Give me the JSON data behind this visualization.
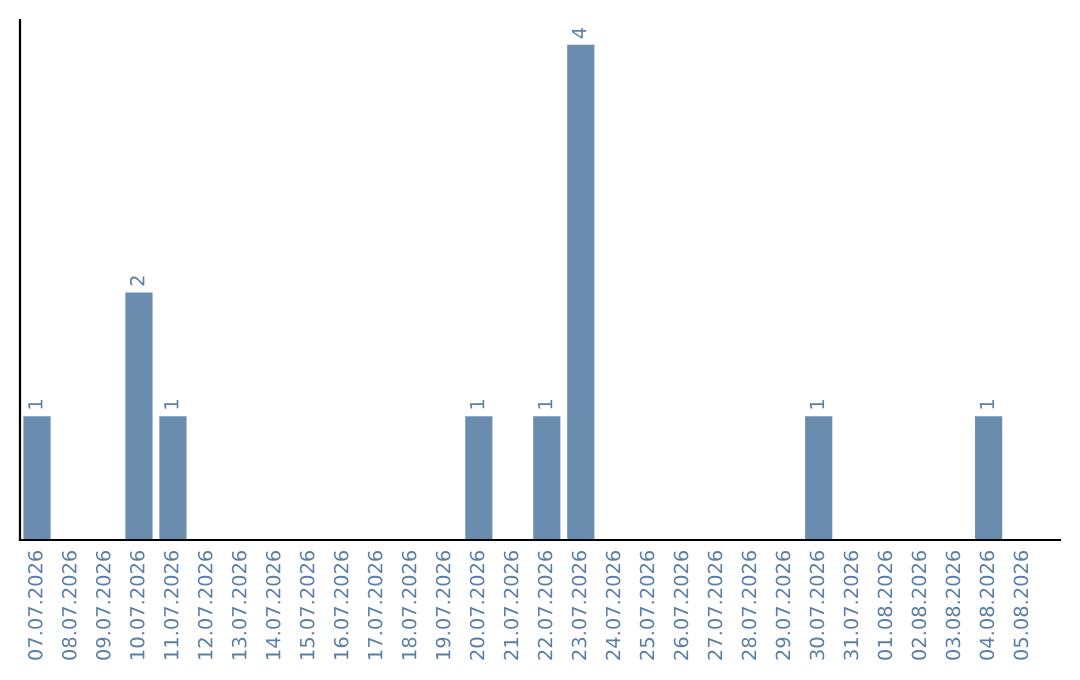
{
  "chart_data": {
    "type": "bar",
    "categories": [
      "07.07.2026",
      "08.07.2026",
      "09.07.2026",
      "10.07.2026",
      "11.07.2026",
      "12.07.2026",
      "13.07.2026",
      "14.07.2026",
      "15.07.2026",
      "16.07.2026",
      "17.07.2026",
      "18.07.2026",
      "19.07.2026",
      "20.07.2026",
      "21.07.2026",
      "22.07.2026",
      "23.07.2026",
      "24.07.2026",
      "25.07.2026",
      "26.07.2026",
      "27.07.2026",
      "28.07.2026",
      "29.07.2026",
      "30.07.2026",
      "31.07.2026",
      "01.08.2026",
      "02.08.2026",
      "03.08.2026",
      "04.08.2026",
      "05.08.2026"
    ],
    "values": [
      1,
      0,
      0,
      2,
      1,
      0,
      0,
      0,
      0,
      0,
      0,
      0,
      0,
      1,
      0,
      1,
      4,
      0,
      0,
      0,
      0,
      0,
      0,
      1,
      0,
      0,
      0,
      0,
      1,
      0
    ],
    "value_labels": [
      "1",
      null,
      null,
      "2",
      "1",
      null,
      null,
      null,
      null,
      null,
      null,
      null,
      null,
      "1",
      null,
      "1",
      "4",
      null,
      null,
      null,
      null,
      null,
      null,
      "1",
      null,
      null,
      null,
      null,
      "1",
      null
    ],
    "color": "#6a8caf",
    "ylim": [
      0,
      4.2
    ],
    "tick_labels": "x",
    "grid": false,
    "legend": false
  }
}
